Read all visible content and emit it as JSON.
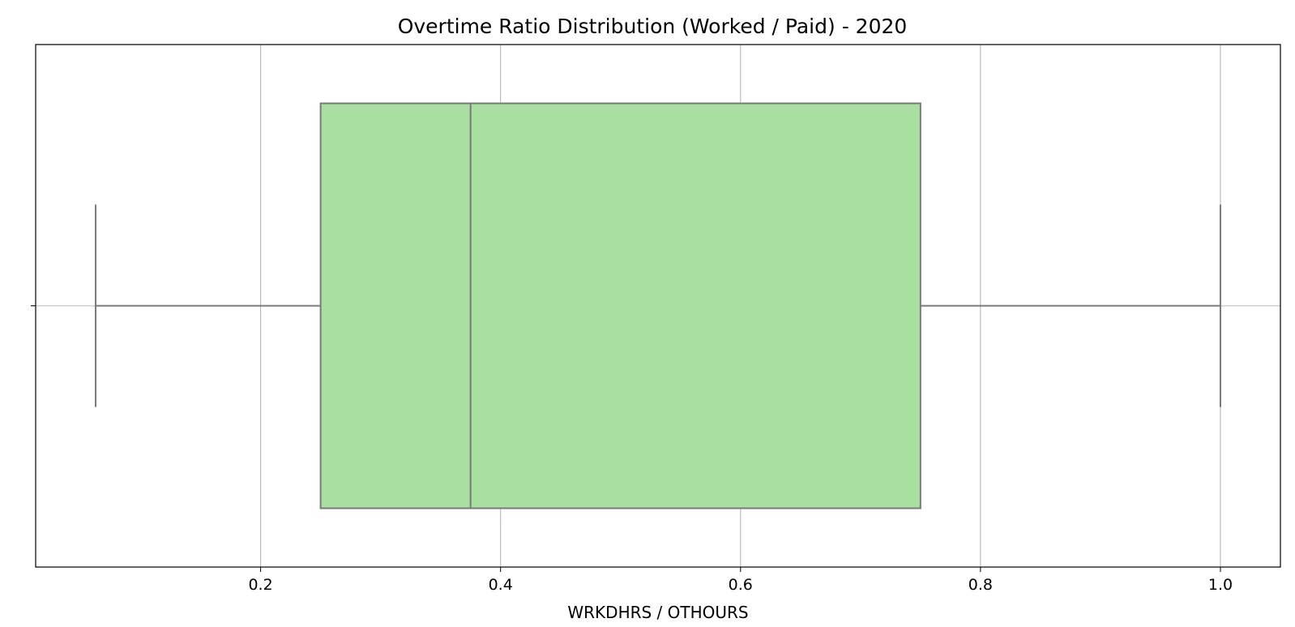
{
  "chart_data": {
    "type": "boxplot",
    "title": "Overtime Ratio Distribution (Worked / Paid) - 2020",
    "xlabel": "WRKDHRS / OTHOURS",
    "ylabel": "",
    "orientation": "horizontal",
    "xlim": [
      0.0125,
      1.05
    ],
    "xticks": [
      0.2,
      0.4,
      0.6,
      0.8,
      1.0
    ],
    "xtick_labels": [
      "0.2",
      "0.4",
      "0.6",
      "0.8",
      "1.0"
    ],
    "grid": true,
    "box": {
      "whisker_low": 0.0625,
      "q1": 0.25,
      "median": 0.375,
      "q3": 0.75,
      "whisker_high": 1.0
    },
    "colors": {
      "box_fill": "#a9dfa0",
      "box_edge": "#7a7a7a",
      "grid": "#b0b0b0",
      "axes_frame": "#000000"
    }
  }
}
